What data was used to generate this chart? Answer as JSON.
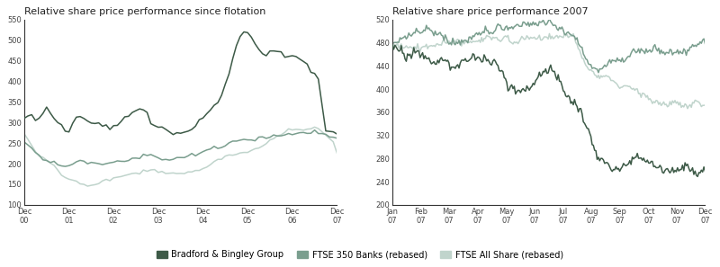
{
  "title1": "Relative share price performance since flotation",
  "title2": "Relative share price performance 2007",
  "color_bb": "#3d5a47",
  "color_ftse350": "#7a9e8e",
  "color_ftseall": "#c0d4cc",
  "background": "#ffffff",
  "legend_labels": [
    "Bradford & Bingley Group",
    "FTSE 350 Banks (rebased)",
    "FTSE All Share (rebased)"
  ],
  "chart1_ylim": [
    100,
    550
  ],
  "chart1_yticks": [
    100,
    150,
    200,
    250,
    300,
    350,
    400,
    450,
    500,
    550
  ],
  "chart2_ylim": [
    200,
    520
  ],
  "chart2_yticks": [
    200,
    240,
    280,
    320,
    360,
    400,
    440,
    480,
    520
  ],
  "chart1_xticks": [
    "Dec\n00",
    "Dec\n01",
    "Dec\n02",
    "Dec\n03",
    "Dec\n04",
    "Dec\n05",
    "Dec\n06",
    "Dec\n07"
  ],
  "chart2_xticks": [
    "Jan\n07",
    "Feb\n07",
    "Mar\n07",
    "Apr\n07",
    "May\n07",
    "Jun\n07",
    "Jul\n07",
    "Aug\n07",
    "Sep\n07",
    "Oct\n07",
    "Nov\n07",
    "Dec\n07"
  ]
}
